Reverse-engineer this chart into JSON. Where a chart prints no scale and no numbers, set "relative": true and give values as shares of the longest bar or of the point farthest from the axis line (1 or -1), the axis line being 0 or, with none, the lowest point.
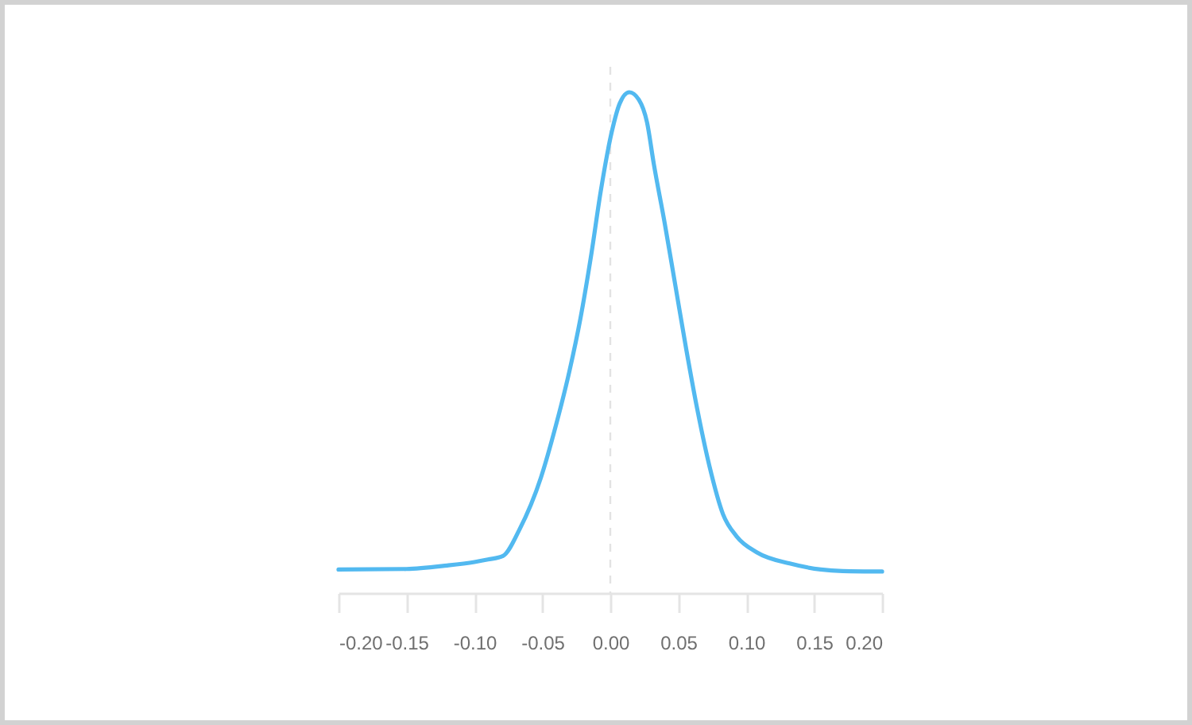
{
  "chart_data": {
    "type": "line",
    "relative": true,
    "tick_labels": "x",
    "xlim": [
      -0.2,
      0.2
    ],
    "xticks": [
      {
        "value": -0.2,
        "label": "-0.20"
      },
      {
        "value": -0.15,
        "label": "-0.15"
      },
      {
        "value": -0.1,
        "label": "-0.10"
      },
      {
        "value": -0.05,
        "label": "-0.05"
      },
      {
        "value": 0,
        "label": "0.00"
      },
      {
        "value": 0.05,
        "label": "0.05"
      },
      {
        "value": 0.1,
        "label": "0.10"
      },
      {
        "value": 0.15,
        "label": "0.15"
      },
      {
        "value": 0.2,
        "label": "0.20"
      }
    ],
    "x": [
      -0.2,
      -0.15,
      -0.12,
      -0.1,
      -0.09,
      -0.079,
      -0.067,
      -0.051,
      -0.04,
      -0.03,
      -0.022,
      -0.014,
      -0.007,
      0.001,
      0.007,
      0.014,
      0.021,
      0.027,
      0.032,
      0.04,
      0.048,
      0.056,
      0.064,
      0.073,
      0.083,
      0.093,
      0.108,
      0.132,
      0.155,
      0.171,
      0.2
    ],
    "series": [
      {
        "color": "#52b9f0",
        "values": [
          0.047,
          0.048,
          0.055,
          0.062,
          0.067,
          0.074,
          0.126,
          0.231,
          0.335,
          0.444,
          0.548,
          0.676,
          0.803,
          0.92,
          0.978,
          1,
          0.985,
          0.94,
          0.857,
          0.739,
          0.612,
          0.485,
          0.367,
          0.253,
          0.157,
          0.113,
          0.081,
          0.059,
          0.047,
          0.044,
          0.043
        ]
      }
    ],
    "ref_lines": [
      {
        "axis": "x",
        "value": 0,
        "color": "#e3e3e3",
        "line_style": "dashed"
      }
    ]
  }
}
